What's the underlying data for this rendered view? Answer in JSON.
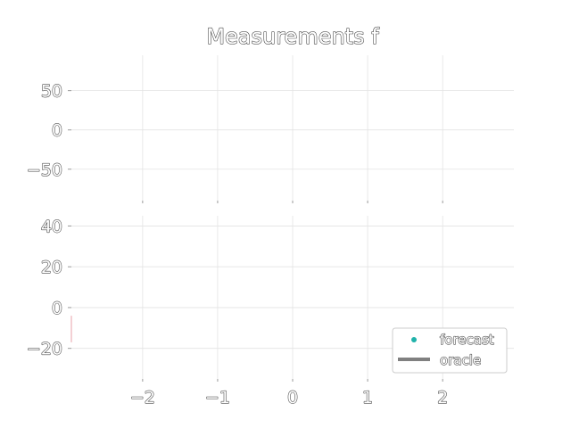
{
  "chart_data": [
    {
      "type": "line",
      "title": "Measurements f",
      "xlabel": "",
      "ylabel": "",
      "xlim": [
        -2.95,
        2.95
      ],
      "ylim": [
        -90,
        95
      ],
      "xticks": [
        -2,
        -1,
        0,
        1,
        2
      ],
      "yticks": [
        50,
        0,
        -50
      ],
      "ytick_labels": [
        "50",
        "0",
        "−50"
      ],
      "grid": true,
      "series": []
    },
    {
      "type": "line",
      "title": "",
      "xlabel": "",
      "ylabel": "",
      "xlim": [
        -2.95,
        2.95
      ],
      "ylim": [
        -35,
        45
      ],
      "xticks": [
        -2,
        -1,
        0,
        1,
        2
      ],
      "xtick_labels": [
        "−2",
        "−1",
        "0",
        "1",
        "2"
      ],
      "yticks": [
        40,
        20,
        0,
        -20
      ],
      "ytick_labels": [
        "40",
        "20",
        "0",
        "−20"
      ],
      "grid": true,
      "legend_position": "bottom-right",
      "series": [
        {
          "name": "forecast",
          "type": "scatter",
          "color": "#20b2aa",
          "x": [],
          "y": []
        },
        {
          "name": "oracle",
          "type": "line",
          "color": "#000000",
          "x": [],
          "y": []
        },
        {
          "type": "line",
          "color": "#e8a0a8",
          "x": [
            -2.95,
            -2.95
          ],
          "y": [
            -4,
            -17
          ]
        }
      ]
    }
  ]
}
